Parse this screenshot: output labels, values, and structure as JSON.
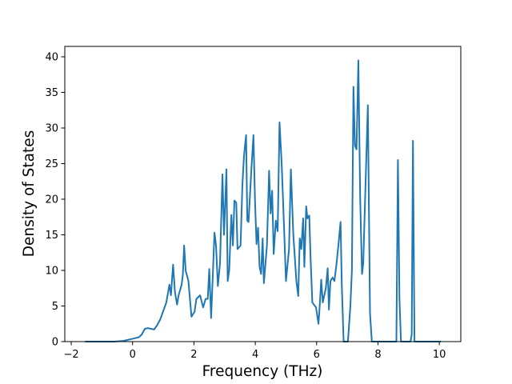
{
  "chart_data": {
    "type": "line",
    "xlabel": "Frequency (THz)",
    "ylabel": "Density of States",
    "color": "#1f77b4",
    "x": [
      -1.55,
      -0.6,
      -0.3,
      0,
      0.2,
      0.3,
      0.4,
      0.5,
      0.6,
      0.7,
      0.8,
      0.9,
      1.0,
      1.1,
      1.2,
      1.25,
      1.32,
      1.38,
      1.45,
      1.5,
      1.6,
      1.64,
      1.68,
      1.73,
      1.82,
      1.92,
      2.02,
      2.08,
      2.2,
      2.3,
      2.38,
      2.45,
      2.5,
      2.56,
      2.67,
      2.72,
      2.78,
      2.85,
      2.93,
      2.98,
      3.06,
      3.1,
      3.15,
      3.22,
      3.27,
      3.32,
      3.38,
      3.42,
      3.52,
      3.58,
      3.63,
      3.7,
      3.74,
      3.78,
      3.87,
      3.94,
      3.99,
      4.04,
      4.09,
      4.14,
      4.19,
      4.24,
      4.28,
      4.38,
      4.45,
      4.5,
      4.55,
      4.6,
      4.67,
      4.73,
      4.79,
      4.86,
      4.93,
      5.0,
      5.1,
      5.16,
      5.24,
      5.34,
      5.4,
      5.45,
      5.5,
      5.56,
      5.6,
      5.66,
      5.7,
      5.76,
      5.8,
      5.86,
      5.98,
      6.06,
      6.1,
      6.15,
      6.2,
      6.3,
      6.36,
      6.4,
      6.45,
      6.52,
      6.58,
      6.65,
      6.72,
      6.78,
      6.82,
      6.88,
      7.02,
      7.1,
      7.15,
      7.2,
      7.25,
      7.3,
      7.36,
      7.42,
      7.48,
      7.52,
      7.58,
      7.67,
      7.74,
      7.8,
      8.6,
      8.65,
      8.7,
      8.75,
      9.06,
      9.1,
      9.14,
      9.19,
      10.05
    ],
    "values": [
      0,
      0,
      0.1,
      0.4,
      0.6,
      1.0,
      1.8,
      1.9,
      1.8,
      1.7,
      2.3,
      3.1,
      4.3,
      5.5,
      8,
      6.5,
      10.8,
      7,
      5.2,
      6.5,
      8,
      9.5,
      13.5,
      10,
      8.5,
      3.5,
      4.2,
      6,
      6.5,
      4.8,
      6,
      6,
      10.2,
      3.3,
      15.3,
      13.5,
      7.8,
      11,
      23.5,
      15,
      24.2,
      8.5,
      10,
      17.8,
      13.5,
      19.8,
      19.5,
      13,
      13.5,
      22,
      26,
      29,
      17,
      16.8,
      24,
      29,
      20,
      13.7,
      16,
      10.5,
      9.5,
      14.5,
      8.2,
      13.5,
      24,
      18,
      21.2,
      12.3,
      17,
      15.5,
      30.8,
      25,
      17,
      8.5,
      13,
      24.2,
      15,
      8.5,
      6.4,
      14.5,
      13,
      17.3,
      10.5,
      19,
      17.3,
      17.7,
      12,
      5.5,
      4.8,
      2.5,
      5,
      8.7,
      5.5,
      7.5,
      10.3,
      4.5,
      8.5,
      9,
      8.5,
      11,
      14,
      16.8,
      8,
      0,
      0,
      5,
      10,
      35.8,
      27.5,
      27,
      39.5,
      20,
      9.5,
      11,
      20,
      33.2,
      4,
      0,
      0,
      25.5,
      6,
      0,
      0,
      1,
      28.2,
      0,
      0
    ],
    "xlim": [
      -2.21,
      10.7
    ],
    "ylim": [
      0,
      41.46
    ],
    "xticks": [
      {
        "value": -2,
        "label": "−2"
      },
      0,
      2,
      4,
      6,
      8,
      10
    ],
    "yticks": [
      0,
      5,
      10,
      15,
      20,
      25,
      30,
      35,
      40
    ]
  }
}
